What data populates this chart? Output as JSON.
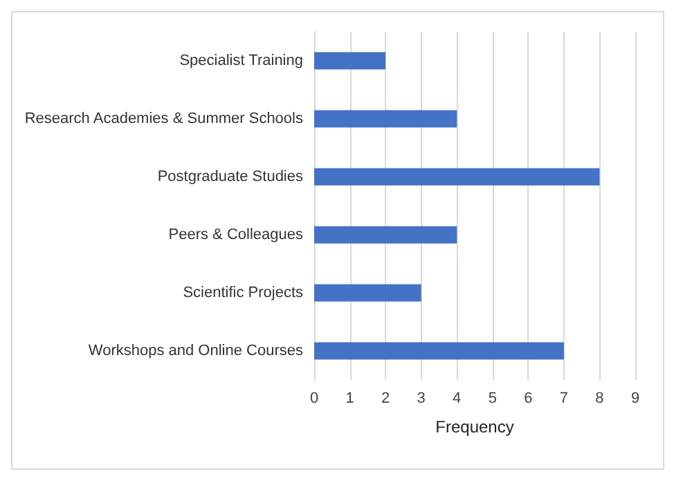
{
  "chart_data": {
    "type": "bar",
    "orientation": "horizontal",
    "xlabel": "Frequency",
    "categories": [
      "Specialist Training",
      "Research Academies & Summer Schools",
      "Postgraduate Studies",
      "Peers & Colleagues",
      "Scientific Projects",
      "Workshops and Online Courses"
    ],
    "values": [
      2,
      4,
      8,
      4,
      3,
      7
    ],
    "color": "#4472c4",
    "xlim": [
      0,
      9
    ],
    "xticks": [
      0,
      1,
      2,
      3,
      4,
      5,
      6,
      7,
      8,
      9
    ],
    "grid": "x"
  }
}
